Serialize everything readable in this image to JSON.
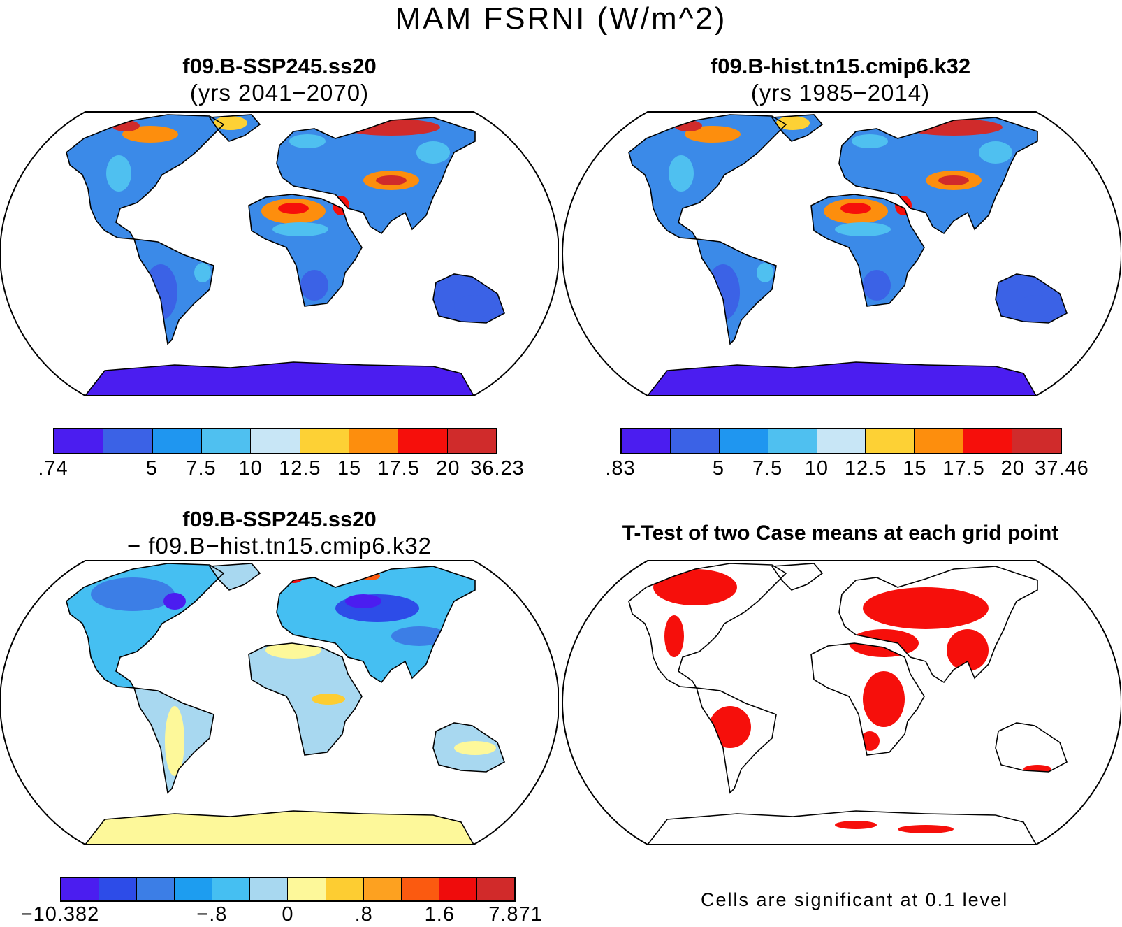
{
  "figure": {
    "title": "MAM FSRNI (W/m^2)",
    "note": "Cells are significant at 0.1 level"
  },
  "panels": [
    {
      "id": "case1",
      "title_line1": "f09.B-SSP245.ss20",
      "title_line2": "(yrs 2041−2070)",
      "colorbar": {
        "colors": [
          "#4b1df0",
          "#3b62e6",
          "#1f96f0",
          "#4fc0f0",
          "#c8e6f6",
          "#fdd135",
          "#fd8e0d",
          "#f60f0b",
          "#d02b2b"
        ],
        "labels": [
          ".74",
          "5",
          "7.5",
          "10",
          "12.5",
          "15",
          "17.5",
          "20",
          "36.23"
        ],
        "label_edges": [
          0,
          2,
          3,
          4,
          5,
          6,
          7,
          8,
          9
        ]
      }
    },
    {
      "id": "case2",
      "title_line1": "f09.B-hist.tn15.cmip6.k32",
      "title_line2": "(yrs 1985−2014)",
      "colorbar": {
        "colors": [
          "#4b1df0",
          "#3b62e6",
          "#1f96f0",
          "#4fc0f0",
          "#c8e6f6",
          "#fdd135",
          "#fd8e0d",
          "#f60f0b",
          "#d02b2b"
        ],
        "labels": [
          ".83",
          "5",
          "7.5",
          "10",
          "12.5",
          "15",
          "17.5",
          "20",
          "37.46"
        ],
        "label_edges": [
          0,
          2,
          3,
          4,
          5,
          6,
          7,
          8,
          9
        ]
      }
    },
    {
      "id": "diff",
      "title_line1": "f09.B-SSP245.ss20",
      "title_line2": "− f09.B−hist.tn15.cmip6.k32",
      "colorbar": {
        "colors": [
          "#4b1df0",
          "#2d4ce8",
          "#3c7ee6",
          "#1d9df0",
          "#45bff2",
          "#a8d8f0",
          "#fdf89a",
          "#fdcd32",
          "#fda120",
          "#fb5a10",
          "#ef0c0c",
          "#d12a2a"
        ],
        "labels": [
          "−10.382",
          "−.8",
          "0",
          ".8",
          "1.6",
          "7.871"
        ],
        "label_edges": [
          0,
          4,
          6,
          8,
          10,
          12
        ]
      }
    },
    {
      "id": "ttest",
      "title": "T-Test of two Case means at each grid point"
    }
  ]
}
